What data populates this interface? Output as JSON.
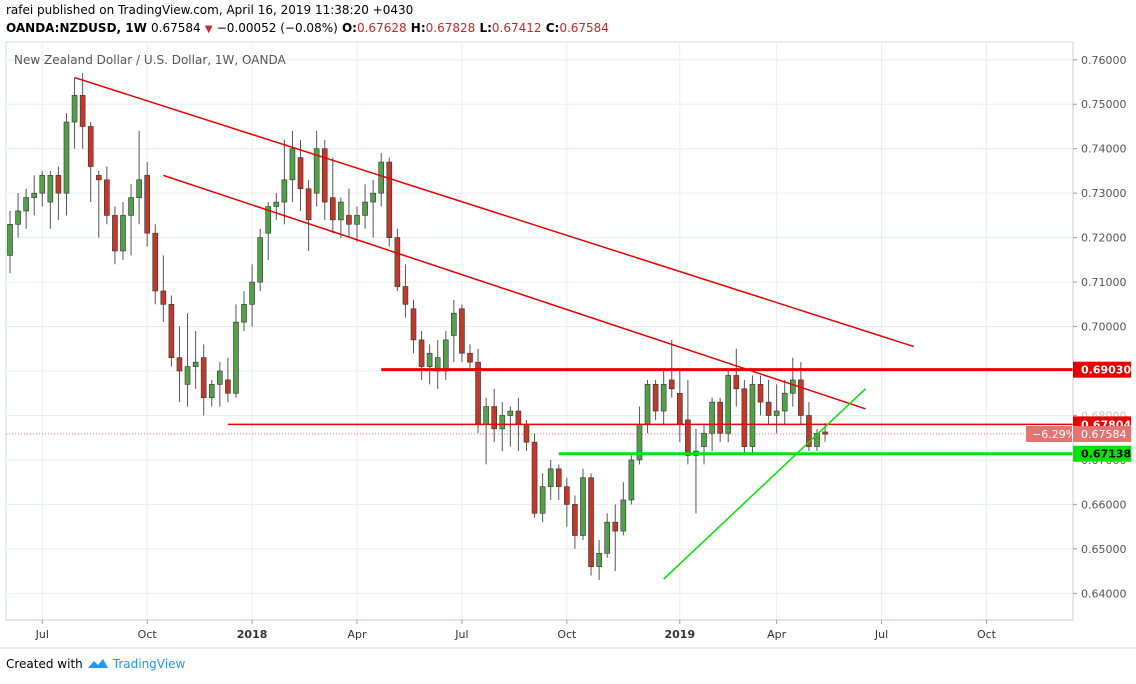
{
  "header": {
    "published_line": "rafei published on TradingView.com, April 16, 2019 11:38:20 +0430",
    "symbol": "OANDA:NZDUSD, 1W",
    "last": "0.67584",
    "change": "−0.00052 (−0.08%)",
    "open_label": "O:",
    "open": "0.67628",
    "high_label": "H:",
    "high": "0.67828",
    "low_label": "L:",
    "low": "0.67412",
    "close_label": "C:",
    "close": "0.67584"
  },
  "footer": {
    "created_with": "Created with",
    "brand": "TradingView"
  },
  "colors": {
    "up": "#52a049",
    "down": "#c0392b",
    "resistance": "#e60000",
    "support": "#00e600",
    "grid": "#e9edf2"
  },
  "chart_data": {
    "type": "candlestick",
    "title": "New Zealand Dollar / U.S. Dollar, 1W, OANDA",
    "ylim": [
      0.634,
      0.764
    ],
    "y_ticks": [
      "0.76000",
      "0.75000",
      "0.74000",
      "0.73000",
      "0.72000",
      "0.71000",
      "0.70000",
      "0.69000",
      "0.68000",
      "0.67000",
      "0.66000",
      "0.65000",
      "0.64000"
    ],
    "x_ticks": [
      {
        "label": "Jul",
        "bold": false,
        "week": 4
      },
      {
        "label": "Oct",
        "bold": false,
        "week": 17
      },
      {
        "label": "2018",
        "bold": true,
        "week": 30
      },
      {
        "label": "Apr",
        "bold": false,
        "week": 43
      },
      {
        "label": "Jul",
        "bold": false,
        "week": 56
      },
      {
        "label": "Oct",
        "bold": false,
        "week": 69
      },
      {
        "label": "2019",
        "bold": true,
        "week": 83
      },
      {
        "label": "Apr",
        "bold": false,
        "week": 95
      },
      {
        "label": "Jul",
        "bold": false,
        "week": 108
      },
      {
        "label": "Oct",
        "bold": false,
        "week": 121
      }
    ],
    "candles": [
      [
        0.716,
        0.726,
        0.712,
        0.723
      ],
      [
        0.723,
        0.73,
        0.72,
        0.726
      ],
      [
        0.726,
        0.731,
        0.722,
        0.729
      ],
      [
        0.729,
        0.734,
        0.725,
        0.73
      ],
      [
        0.73,
        0.735,
        0.727,
        0.734
      ],
      [
        0.728,
        0.735,
        0.722,
        0.734
      ],
      [
        0.734,
        0.736,
        0.724,
        0.73
      ],
      [
        0.73,
        0.748,
        0.725,
        0.746
      ],
      [
        0.746,
        0.756,
        0.74,
        0.752
      ],
      [
        0.752,
        0.757,
        0.74,
        0.745
      ],
      [
        0.745,
        0.746,
        0.728,
        0.736
      ],
      [
        0.734,
        0.735,
        0.72,
        0.733
      ],
      [
        0.733,
        0.736,
        0.723,
        0.725
      ],
      [
        0.725,
        0.727,
        0.714,
        0.717
      ],
      [
        0.717,
        0.728,
        0.715,
        0.725
      ],
      [
        0.725,
        0.732,
        0.716,
        0.729
      ],
      [
        0.729,
        0.744,
        0.723,
        0.733
      ],
      [
        0.734,
        0.737,
        0.718,
        0.721
      ],
      [
        0.721,
        0.723,
        0.705,
        0.708
      ],
      [
        0.708,
        0.716,
        0.701,
        0.705
      ],
      [
        0.705,
        0.707,
        0.691,
        0.693
      ],
      [
        0.693,
        0.7,
        0.683,
        0.69
      ],
      [
        0.687,
        0.703,
        0.682,
        0.691
      ],
      [
        0.691,
        0.699,
        0.686,
        0.692
      ],
      [
        0.693,
        0.696,
        0.68,
        0.684
      ],
      [
        0.684,
        0.688,
        0.682,
        0.687
      ],
      [
        0.687,
        0.692,
        0.682,
        0.69
      ],
      [
        0.688,
        0.693,
        0.683,
        0.685
      ],
      [
        0.685,
        0.705,
        0.684,
        0.701
      ],
      [
        0.701,
        0.708,
        0.699,
        0.705
      ],
      [
        0.705,
        0.714,
        0.7,
        0.71
      ],
      [
        0.71,
        0.722,
        0.708,
        0.72
      ],
      [
        0.721,
        0.728,
        0.715,
        0.727
      ],
      [
        0.727,
        0.73,
        0.724,
        0.728
      ],
      [
        0.728,
        0.742,
        0.723,
        0.733
      ],
      [
        0.733,
        0.744,
        0.728,
        0.74
      ],
      [
        0.738,
        0.742,
        0.726,
        0.731
      ],
      [
        0.731,
        0.733,
        0.717,
        0.724
      ],
      [
        0.73,
        0.744,
        0.727,
        0.74
      ],
      [
        0.74,
        0.742,
        0.724,
        0.728
      ],
      [
        0.729,
        0.738,
        0.721,
        0.724
      ],
      [
        0.724,
        0.729,
        0.72,
        0.728
      ],
      [
        0.725,
        0.731,
        0.72,
        0.723
      ],
      [
        0.723,
        0.727,
        0.719,
        0.725
      ],
      [
        0.725,
        0.732,
        0.722,
        0.728
      ],
      [
        0.728,
        0.733,
        0.72,
        0.73
      ],
      [
        0.73,
        0.739,
        0.727,
        0.737
      ],
      [
        0.737,
        0.738,
        0.718,
        0.72
      ],
      [
        0.72,
        0.722,
        0.708,
        0.709
      ],
      [
        0.709,
        0.714,
        0.702,
        0.705
      ],
      [
        0.704,
        0.706,
        0.694,
        0.697
      ],
      [
        0.697,
        0.699,
        0.688,
        0.691
      ],
      [
        0.691,
        0.696,
        0.687,
        0.694
      ],
      [
        0.69,
        0.697,
        0.686,
        0.693
      ],
      [
        0.69,
        0.699,
        0.688,
        0.697
      ],
      [
        0.698,
        0.706,
        0.692,
        0.703
      ],
      [
        0.704,
        0.705,
        0.692,
        0.694
      ],
      [
        0.694,
        0.696,
        0.69,
        0.692
      ],
      [
        0.692,
        0.695,
        0.676,
        0.678
      ],
      [
        0.678,
        0.684,
        0.669,
        0.682
      ],
      [
        0.682,
        0.686,
        0.674,
        0.677
      ],
      [
        0.677,
        0.683,
        0.672,
        0.68
      ],
      [
        0.68,
        0.682,
        0.673,
        0.681
      ],
      [
        0.681,
        0.684,
        0.672,
        0.678
      ],
      [
        0.678,
        0.679,
        0.672,
        0.674
      ],
      [
        0.674,
        0.676,
        0.657,
        0.658
      ],
      [
        0.658,
        0.667,
        0.656,
        0.664
      ],
      [
        0.664,
        0.67,
        0.661,
        0.668
      ],
      [
        0.668,
        0.669,
        0.661,
        0.664
      ],
      [
        0.664,
        0.666,
        0.655,
        0.66
      ],
      [
        0.66,
        0.662,
        0.65,
        0.653
      ],
      [
        0.653,
        0.668,
        0.652,
        0.666
      ],
      [
        0.666,
        0.667,
        0.644,
        0.646
      ],
      [
        0.646,
        0.652,
        0.643,
        0.649
      ],
      [
        0.649,
        0.658,
        0.648,
        0.656
      ],
      [
        0.656,
        0.66,
        0.645,
        0.654
      ],
      [
        0.654,
        0.665,
        0.653,
        0.661
      ],
      [
        0.661,
        0.671,
        0.66,
        0.67
      ],
      [
        0.67,
        0.682,
        0.669,
        0.678
      ],
      [
        0.678,
        0.688,
        0.676,
        0.687
      ],
      [
        0.687,
        0.688,
        0.679,
        0.681
      ],
      [
        0.681,
        0.69,
        0.678,
        0.687
      ],
      [
        0.688,
        0.697,
        0.684,
        0.686
      ],
      [
        0.685,
        0.69,
        0.674,
        0.678
      ],
      [
        0.679,
        0.688,
        0.669,
        0.671
      ],
      [
        0.671,
        0.677,
        0.658,
        0.672
      ],
      [
        0.673,
        0.678,
        0.669,
        0.676
      ],
      [
        0.676,
        0.684,
        0.672,
        0.683
      ],
      [
        0.683,
        0.684,
        0.674,
        0.676
      ],
      [
        0.676,
        0.69,
        0.674,
        0.689
      ],
      [
        0.689,
        0.695,
        0.682,
        0.686
      ],
      [
        0.686,
        0.688,
        0.671,
        0.673
      ],
      [
        0.673,
        0.689,
        0.671,
        0.687
      ],
      [
        0.687,
        0.689,
        0.68,
        0.683
      ],
      [
        0.683,
        0.688,
        0.678,
        0.68
      ],
      [
        0.68,
        0.687,
        0.676,
        0.681
      ],
      [
        0.681,
        0.688,
        0.678,
        0.685
      ],
      [
        0.685,
        0.693,
        0.682,
        0.688
      ],
      [
        0.688,
        0.692,
        0.678,
        0.68
      ],
      [
        0.68,
        0.683,
        0.672,
        0.673
      ],
      [
        0.673,
        0.677,
        0.672,
        0.676
      ],
      [
        0.6763,
        0.6783,
        0.6741,
        0.6758
      ]
    ],
    "trendlines": [
      {
        "name": "resistance-outer",
        "color": "#e60000",
        "from": [
          8,
          0.756
        ],
        "to": [
          112,
          0.6955
        ]
      },
      {
        "name": "resistance-inner",
        "color": "#e60000",
        "from": [
          19,
          0.734
        ],
        "to": [
          106,
          0.6815
        ]
      },
      {
        "name": "support-rising",
        "color": "#00e600",
        "from": [
          81,
          0.6432
        ],
        "to": [
          106,
          0.686
        ]
      }
    ],
    "levels": [
      {
        "value": 0.6903,
        "label": "0.69030",
        "color": "#e60000",
        "from_week": 46,
        "thick": true
      },
      {
        "value": 0.678,
        "label": "0.67804",
        "color": "#e60000",
        "from_week": 27,
        "thick": false
      },
      {
        "value": 0.6714,
        "label": "0.67138",
        "color": "#00e600",
        "from_week": 68,
        "thick": true
      }
    ],
    "price_tag": {
      "value": 0.67584,
      "label": "0.67584",
      "change_label": "−6.29%",
      "color": "#e57373"
    },
    "hidden_tick": "0.68000"
  }
}
